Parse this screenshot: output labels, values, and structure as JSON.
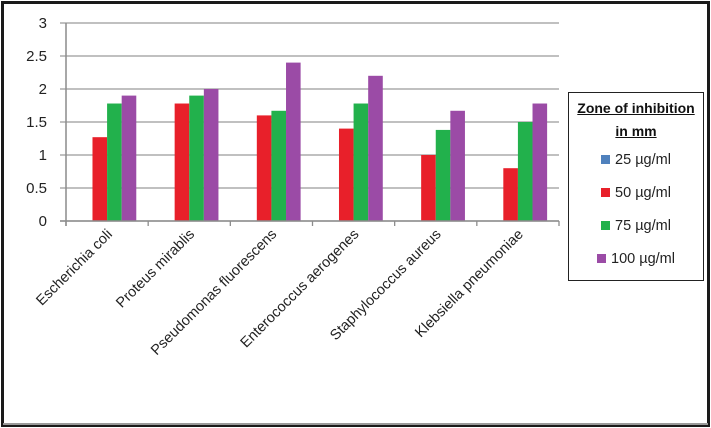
{
  "chart_data": {
    "type": "bar",
    "title": "",
    "xlabel": "",
    "ylabel": "",
    "ylim": [
      0,
      3
    ],
    "yticks": [
      "0",
      "0.5",
      "1",
      "1.5",
      "2",
      "2.5",
      "3"
    ],
    "grid": true,
    "legend_position": "right",
    "legend_title": "Zone of inhibition in mm",
    "categories": [
      "Escherichia coli",
      "Proteus mirablis",
      "Pseudomonas fluorescens",
      "Enterococcus aerogenes",
      "Staphylococcus aureus",
      "Klebsiella pneumoniae"
    ],
    "series": [
      {
        "name": "25 µg/ml",
        "color": "#4F81BD",
        "values": [
          0,
          0,
          0,
          0,
          0,
          0
        ]
      },
      {
        "name": "50 µg/ml",
        "color": "#E8202A",
        "values": [
          1.27,
          1.78,
          1.6,
          1.4,
          1.0,
          0.8
        ]
      },
      {
        "name": "75 µg/ml",
        "color": "#22B14C",
        "values": [
          1.78,
          1.9,
          1.67,
          1.78,
          1.38,
          1.5
        ]
      },
      {
        "name": "100 µg/ml",
        "color": "#9B4BA6",
        "values": [
          1.9,
          2.0,
          2.4,
          2.2,
          1.67,
          1.78
        ]
      }
    ]
  },
  "legend": {
    "title_line1": "Zone of inhibition",
    "title_line2": "in mm",
    "items": [
      {
        "label": "25 µg/ml",
        "color": "#4F81BD"
      },
      {
        "label": "50 µg/ml",
        "color": "#E8202A"
      },
      {
        "label": "75 µg/ml",
        "color": "#22B14C"
      },
      {
        "label": "100 µg/ml",
        "color": "#9B4BA6"
      }
    ]
  },
  "colors": {
    "grid": "#9a9a9a",
    "axis": "#8c8c8c",
    "frame": "#1a1a1a"
  }
}
